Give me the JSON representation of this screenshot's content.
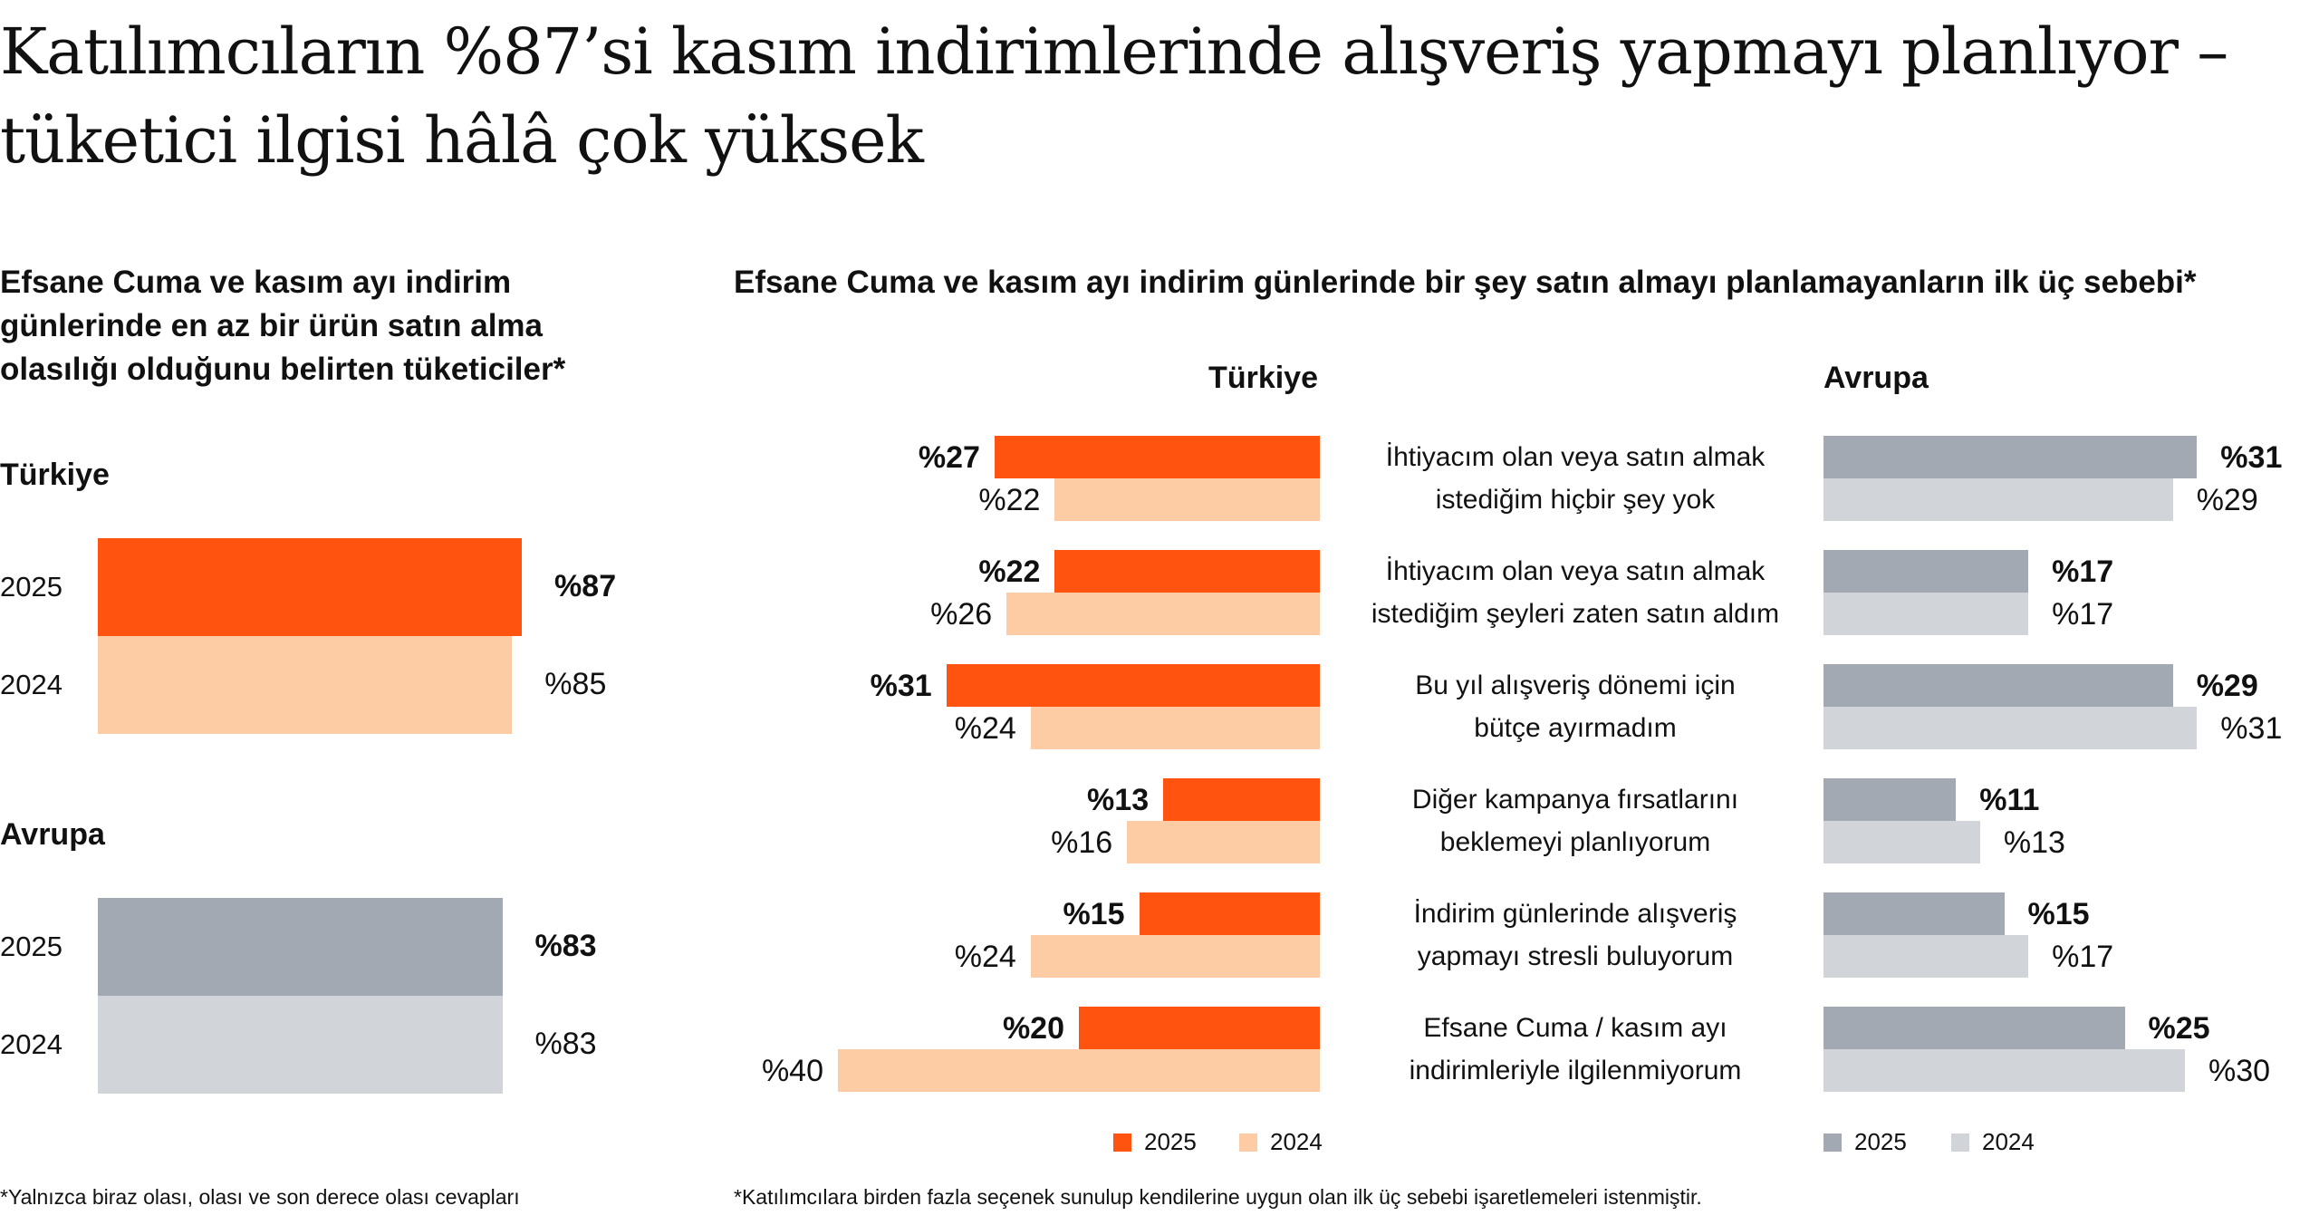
{
  "title": "Katılımcıların %87’si kasım indirimlerinde alışveriş yapmayı planlıyor – tüketici ilgisi hâlâ çok yüksek",
  "colors": {
    "tr2025": "#FF530F",
    "tr2024": "#FDCBA4",
    "eu2025": "#A2A9B3",
    "eu2024": "#D1D5D9"
  },
  "chart_data": [
    {
      "type": "bar",
      "orientation": "horizontal",
      "title": "Efsane Cuma ve kasım ayı indirim günlerinde en az bir ürün satın alma olasılığı olduğunu belirten tüketiciler*",
      "groups": [
        {
          "name": "Türkiye",
          "bars": [
            {
              "year": "2025",
              "value": 87,
              "label": "%87"
            },
            {
              "year": "2024",
              "value": 85,
              "label": "%85"
            }
          ]
        },
        {
          "name": "Avrupa",
          "bars": [
            {
              "year": "2025",
              "value": 83,
              "label": "%83"
            },
            {
              "year": "2024",
              "value": 83,
              "label": "%83"
            }
          ]
        }
      ],
      "footnote": "*Yalnızca biraz olası, olası ve son derece olası cevapları"
    },
    {
      "type": "bar",
      "orientation": "horizontal",
      "title": "Efsane Cuma ve kasım ayı indirim günlerinde bir şey satın almayı planlamayanların ilk üç sebebi*",
      "panels": [
        "Türkiye",
        "Avrupa"
      ],
      "categories": [
        [
          "İhtiyacım olan veya satın almak",
          "istediğim hiçbir şey yok"
        ],
        [
          "İhtiyacım olan veya satın almak",
          "istediğim şeyleri zaten satın aldım"
        ],
        [
          "Bu yıl alışveriş dönemi için",
          "bütçe ayırmadım"
        ],
        [
          "Diğer kampanya fırsatlarını",
          "beklemeyi planlıyorum"
        ],
        [
          "İndirim günlerinde alışveriş",
          "yapmayı stresli buluyorum"
        ],
        [
          "Efsane Cuma / kasım ayı",
          "indirimleriyle ilgilenmiyorum"
        ]
      ],
      "series": {
        "tr2025": [
          27,
          22,
          31,
          13,
          15,
          20
        ],
        "tr2024": [
          22,
          26,
          24,
          16,
          24,
          40
        ],
        "eu2025": [
          31,
          17,
          29,
          11,
          15,
          25
        ],
        "eu2024": [
          29,
          17,
          31,
          13,
          17,
          30
        ]
      },
      "labels": {
        "tr2025": [
          "%27",
          "%22",
          "%31",
          "%13",
          "%15",
          "%20"
        ],
        "tr2024": [
          "%22",
          "%26",
          "%24",
          "%16",
          "%24",
          "%40"
        ],
        "eu2025": [
          "%31",
          "%17",
          "%29",
          "%11",
          "%15",
          "%25"
        ],
        "eu2024": [
          "%29",
          "%17",
          "%31",
          "%13",
          "%17",
          "%30"
        ]
      },
      "legend": [
        "2025",
        "2024"
      ],
      "footnote": "*Katılımcılara birden fazla seçenek sunulup kendilerine uygun olan ilk üç sebebi işaretlemeleri istenmiştir."
    }
  ]
}
